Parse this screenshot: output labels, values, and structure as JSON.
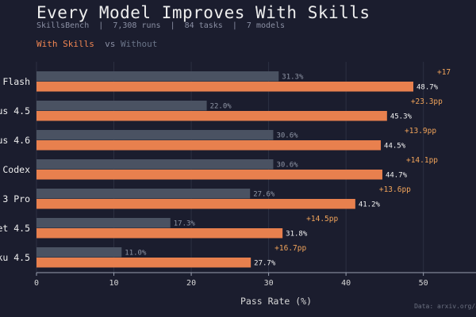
{
  "header": {
    "title": "Every Model Improves With Skills",
    "subtitle": "SkillsBench  |  7,308 runs  |  84 tasks  |  7 models"
  },
  "legend": {
    "with_label": "With Skills",
    "vs_label": "vs",
    "without_label": "Without"
  },
  "source": "Data: arxiv.org/a",
  "colors": {
    "with": "#e8804e",
    "without": "#4a5262",
    "delta": "#f0a35a",
    "background": "#1b1d2e",
    "grid": "#2c3042"
  },
  "chart_data": {
    "type": "bar",
    "orientation": "horizontal",
    "title": "Every Model Improves With Skills",
    "subtitle": "SkillsBench  |  7,308 runs  |  84 tasks  |  7 models",
    "xlabel": "Pass Rate (%)",
    "ylabel": "",
    "xlim": [
      0,
      56.8
    ],
    "xticks": [
      0,
      10,
      20,
      30,
      40,
      50
    ],
    "xtick_labels": [
      "0",
      "10",
      "20",
      "30",
      "40",
      "50"
    ],
    "grid": true,
    "legend": "top-left",
    "categories": [
      "Flash",
      "us 4.5",
      "us 4.6",
      "Codex",
      "3 Pro",
      "et 4.5",
      "ku 4.5"
    ],
    "series": [
      {
        "name": "Without",
        "values": [
          31.3,
          22.0,
          30.6,
          30.6,
          27.6,
          17.3,
          11.0
        ],
        "labels": [
          "31.3%",
          "22.0%",
          "30.6%",
          "30.6%",
          "27.6%",
          "17.3%",
          "11.0%"
        ]
      },
      {
        "name": "With Skills",
        "values": [
          48.7,
          45.3,
          44.5,
          44.7,
          41.2,
          31.8,
          27.7
        ],
        "labels": [
          "48.7%",
          "45.3%",
          "44.5%",
          "44.7%",
          "41.2%",
          "31.8%",
          "27.7%"
        ]
      }
    ],
    "deltas": [
      "+17",
      "+23.3pp",
      "+13.9pp",
      "+14.1pp",
      "+13.6pp",
      "+14.5pp",
      "+16.7pp"
    ]
  }
}
